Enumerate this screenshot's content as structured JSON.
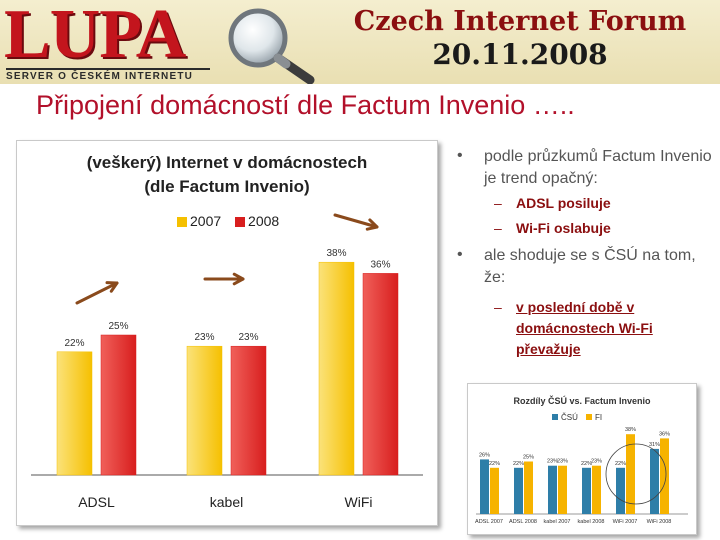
{
  "header": {
    "logo_text": "LUPA",
    "logo_tagline": "SERVER O ČESKÉM INTERNETU",
    "forum_title": "Czech Internet Forum",
    "forum_date": "20.11.2008"
  },
  "slide_title": "Připojení domácností dle Factum Invenio …..",
  "colors": {
    "series_2007": "#f5c000",
    "series_2008": "#d81e1e",
    "csu": "#2e7ea8",
    "fi": "#f6b300",
    "arrow": "#8a4a1c"
  },
  "bullets": {
    "b1": "podle průzkumů Factum Invenio je trend opačný:",
    "b1a": "ADSL posiluje",
    "b1b": "Wi-Fi oslabuje",
    "b2": "ale shoduje se s ČSÚ na tom, že:",
    "b2a": "v poslední době v domácnostech Wi-Fi převažuje"
  },
  "chart_data": [
    {
      "type": "bar",
      "title": "(veškerý) Internet v domácnostech (dle Factum Invenio)",
      "title_line1": "(veškerý) Internet v domácnostech",
      "title_line2": "(dle Factum Invenio)",
      "categories": [
        "ADSL",
        "kabel",
        "WiFi"
      ],
      "series": [
        {
          "name": "2007",
          "values": [
            22,
            23,
            38
          ],
          "labels": [
            "22%",
            "23%",
            "38%"
          ]
        },
        {
          "name": "2008",
          "values": [
            25,
            23,
            36
          ],
          "labels": [
            "25%",
            "23%",
            "36%"
          ]
        }
      ],
      "ylim": [
        0,
        40
      ],
      "legend": "top",
      "grid": false
    },
    {
      "type": "bar",
      "title": "Rozdíly ČSÚ vs. Factum Invenio",
      "categories": [
        "ADSL 2007",
        "ADSL 2008",
        "kabel 2007",
        "kabel 2008",
        "WiFi 2007",
        "WiFi 2008"
      ],
      "series": [
        {
          "name": "ČSÚ",
          "values": [
            26,
            22,
            23,
            22,
            22,
            31
          ],
          "labels": [
            "26%",
            "22%",
            "23%",
            "22%",
            "22%",
            "31%"
          ]
        },
        {
          "name": "FI",
          "values": [
            22,
            25,
            23,
            23,
            38,
            36
          ],
          "labels": [
            "22%",
            "25%",
            "23%",
            "23%",
            "38%",
            "36%"
          ]
        }
      ],
      "ylim": [
        0,
        40
      ],
      "legend": "top",
      "grid": false
    }
  ]
}
